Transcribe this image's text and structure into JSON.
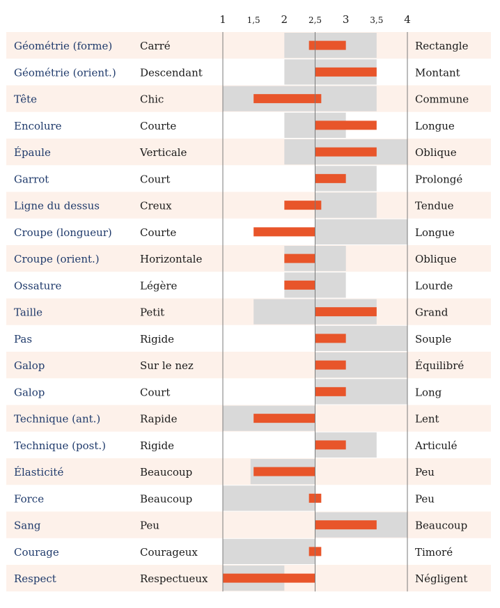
{
  "chart_data": {
    "type": "bar",
    "x_ticks": [
      {
        "value": 1,
        "label": "1"
      },
      {
        "value": 1.5,
        "label": "1,5"
      },
      {
        "value": 2,
        "label": "2"
      },
      {
        "value": 2.5,
        "label": "2,5"
      },
      {
        "value": 3,
        "label": "3"
      },
      {
        "value": 3.5,
        "label": "3,5"
      },
      {
        "value": 4,
        "label": "4"
      }
    ],
    "xlim": [
      1,
      4
    ],
    "reference_value": 2.5,
    "rows": [
      {
        "trait": "Géométrie (forme)",
        "low": "Carré",
        "high": "Rectangle",
        "range": [
          2,
          3.5
        ],
        "value": 3,
        "from": 2.4
      },
      {
        "trait": "Géométrie (orient.)",
        "low": "Descendant",
        "high": "Montant",
        "range": [
          2,
          3.5
        ],
        "value": 3.5,
        "from": 2.5
      },
      {
        "trait": "Tête",
        "low": "Chic",
        "high": "Commune",
        "range": [
          1,
          3.5
        ],
        "value": 1.5,
        "from": 2.6
      },
      {
        "trait": "Encolure",
        "low": "Courte",
        "high": "Longue",
        "range": [
          2,
          3
        ],
        "value": 3.5,
        "from": 2.5
      },
      {
        "trait": "Épaule",
        "low": "Verticale",
        "high": "Oblique",
        "range": [
          2,
          4
        ],
        "value": 3.5,
        "from": 2.5
      },
      {
        "trait": "Garrot",
        "low": "Court",
        "high": "Prolongé",
        "range": [
          2.5,
          3.5
        ],
        "value": 3,
        "from": 2.5
      },
      {
        "trait": "Ligne du dessus",
        "low": "Creux",
        "high": "Tendue",
        "range": [
          2.5,
          3.5
        ],
        "value": 2,
        "from": 2.6
      },
      {
        "trait": "Croupe (longueur)",
        "low": "Courte",
        "high": "Longue",
        "range": [
          2.5,
          4
        ],
        "value": 1.5,
        "from": 2.5
      },
      {
        "trait": "Croupe (orient.)",
        "low": "Horizontale",
        "high": "Oblique",
        "range": [
          2,
          3
        ],
        "value": 2,
        "from": 2.5
      },
      {
        "trait": "Ossature",
        "low": "Légère",
        "high": "Lourde",
        "range": [
          2,
          3
        ],
        "value": 2,
        "from": 2.5
      },
      {
        "trait": "Taille",
        "low": "Petit",
        "high": "Grand",
        "range": [
          1.5,
          3.5
        ],
        "value": 3.5,
        "from": 2.5
      },
      {
        "trait": "Pas",
        "low": "Rigide",
        "high": "Souple",
        "range": [
          2.5,
          4
        ],
        "value": 3,
        "from": 2.5
      },
      {
        "trait": "Galop",
        "low": "Sur le nez",
        "high": "Équilibré",
        "range": [
          2.5,
          4
        ],
        "value": 3,
        "from": 2.5
      },
      {
        "trait": "Galop",
        "low": "Court",
        "high": "Long",
        "range": [
          2.5,
          4
        ],
        "value": 3,
        "from": 2.5
      },
      {
        "trait": "Technique (ant.)",
        "low": "Rapide",
        "high": "Lent",
        "range": [
          1,
          2.5
        ],
        "value": 1.5,
        "from": 2.5
      },
      {
        "trait": "Technique (post.)",
        "low": "Rigide",
        "high": "Articulé",
        "range": [
          2.5,
          3.5
        ],
        "value": 3,
        "from": 2.5
      },
      {
        "trait": "Élasticité",
        "low": "Beaucoup",
        "high": "Peu",
        "range": [
          1.45,
          2.5
        ],
        "value": 1.5,
        "from": 2.5
      },
      {
        "trait": "Force",
        "low": "Beaucoup",
        "high": "Peu",
        "range": [
          1,
          2.5
        ],
        "value": 2.6,
        "from": 2.4
      },
      {
        "trait": "Sang",
        "low": "Peu",
        "high": "Beaucoup",
        "range": [
          2.5,
          4
        ],
        "value": 3.5,
        "from": 2.5
      },
      {
        "trait": "Courage",
        "low": "Courageux",
        "high": "Timoré",
        "range": [
          1,
          2.5
        ],
        "value": 2.6,
        "from": 2.4
      },
      {
        "trait": "Respect",
        "low": "Respectueux",
        "high": "Négligent",
        "range": [
          1,
          2
        ],
        "value": 1,
        "from": 2.5
      }
    ]
  },
  "colors": {
    "stripe": "#fdf1ea",
    "range": "#d9d9d9",
    "bar": "#e8552a",
    "trait_text": "#1f3a6b",
    "text": "#1a1a1a",
    "axis_line": "#7a7a7a"
  }
}
